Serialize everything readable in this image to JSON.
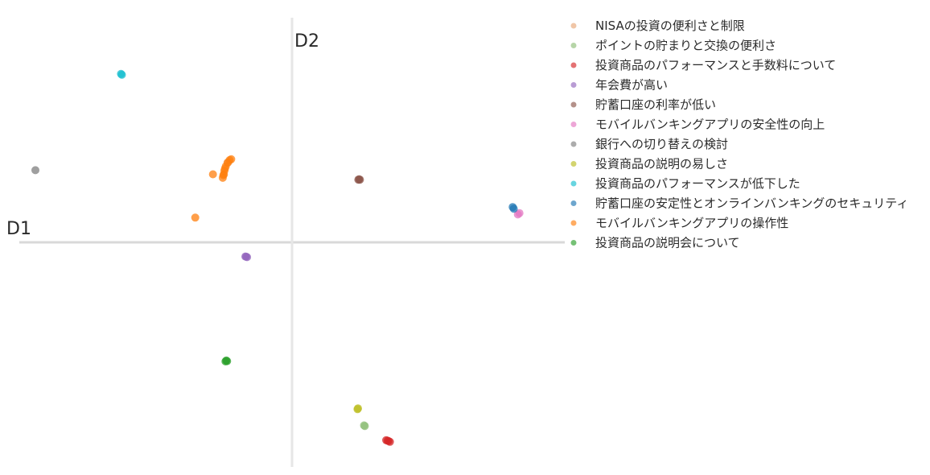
{
  "chart_data": {
    "type": "scatter",
    "title": "",
    "xlabel": "D1",
    "ylabel": "D2",
    "xlim": [
      -100,
      100
    ],
    "ylim": [
      -100,
      100
    ],
    "grid": false,
    "legend_position": "right",
    "series": [
      {
        "name": "NISAの投資の便利さと制限",
        "color": "#e8a878",
        "points": [
          [
            -23.3,
            35.8
          ],
          [
            -23.7,
            35.5
          ]
        ]
      },
      {
        "name": "ポイントの貯まりと交換の便利さ",
        "color": "#8fbf78",
        "points": [
          [
            26.4,
            -81.5
          ],
          [
            26.7,
            -81.8
          ]
        ]
      },
      {
        "name": "投資商品のパフォーマンスと手数料について",
        "color": "#d62728",
        "points": [
          [
            34.5,
            -88.1
          ],
          [
            35.4,
            -88.5
          ],
          [
            35.9,
            -88.8
          ],
          [
            35.0,
            -88.3
          ]
        ]
      },
      {
        "name": "年会費が高い",
        "color": "#9467bd",
        "points": [
          [
            -17.1,
            -6.3
          ],
          [
            -16.5,
            -6.6
          ],
          [
            -16.8,
            -6.4
          ]
        ]
      },
      {
        "name": "貯蓄口座の利率が低い",
        "color": "#8c564b",
        "points": [
          [
            24.3,
            27.9
          ],
          [
            24.9,
            27.9
          ],
          [
            24.6,
            28.1
          ]
        ]
      },
      {
        "name": "モバイルバンキングアプリの安全性の向上",
        "color": "#e377c2",
        "points": [
          [
            82.8,
            12.4
          ],
          [
            83.4,
            13.0
          ]
        ]
      },
      {
        "name": "銀行への切り替えの検討",
        "color": "#7f7f7f",
        "points": [
          [
            -94.1,
            32.1
          ]
        ]
      },
      {
        "name": "投資商品の説明の易しさ",
        "color": "#bcbd22",
        "points": [
          [
            24.0,
            -74.3
          ],
          [
            24.2,
            -73.9
          ]
        ]
      },
      {
        "name": "投資商品のパフォーマンスが低下した",
        "color": "#17becf",
        "points": [
          [
            -62.7,
            75.0
          ],
          [
            -62.4,
            74.6
          ]
        ]
      },
      {
        "name": "貯蓄口座の安定性とオンラインバンキングのセキュリティ",
        "color": "#1f77b4",
        "points": [
          [
            80.9,
            15.7
          ],
          [
            81.3,
            15.0
          ]
        ]
      },
      {
        "name": "モバイルバンキングアプリの操作性",
        "color": "#ff7f0e",
        "points": [
          [
            -22.3,
            37.0
          ],
          [
            -22.9,
            36.6
          ],
          [
            -23.6,
            35.4
          ],
          [
            -24.3,
            33.8
          ],
          [
            -24.6,
            32.8
          ],
          [
            -25.2,
            29.9
          ],
          [
            -25.4,
            28.7
          ],
          [
            -25.0,
            30.3
          ],
          [
            -24.8,
            31.8
          ],
          [
            -29.0,
            30.3
          ],
          [
            -35.5,
            11.0
          ]
        ]
      },
      {
        "name": "投資商品の説明会について",
        "color": "#2ca02c",
        "points": [
          [
            -24.4,
            -53.0
          ],
          [
            -24.1,
            -52.6
          ],
          [
            -23.8,
            -52.9
          ]
        ]
      }
    ]
  }
}
